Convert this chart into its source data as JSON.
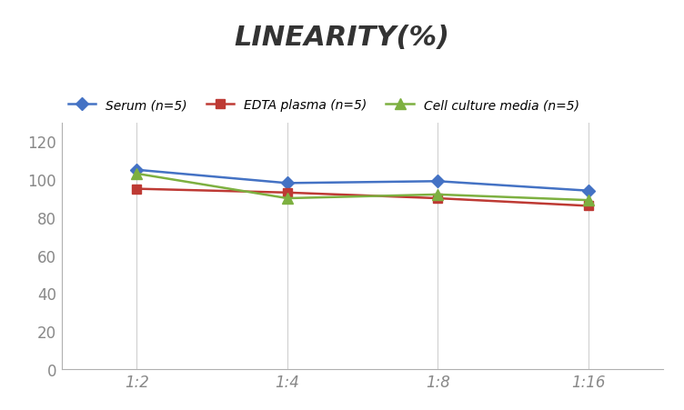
{
  "title": "LINEARITY(%)",
  "x_labels": [
    "1:2",
    "1:4",
    "1:8",
    "1:16"
  ],
  "x_positions": [
    0,
    1,
    2,
    3
  ],
  "series": [
    {
      "label": "Serum (n=5)",
      "values": [
        105,
        98,
        99,
        94
      ],
      "color": "#4472C4",
      "marker": "D",
      "markersize": 7,
      "linewidth": 1.8
    },
    {
      "label": "EDTA plasma (n=5)",
      "values": [
        95,
        93,
        90,
        86
      ],
      "color": "#BE3A34",
      "marker": "s",
      "markersize": 7,
      "linewidth": 1.8
    },
    {
      "label": "Cell culture media (n=5)",
      "values": [
        103,
        90,
        92,
        89
      ],
      "color": "#7DB040",
      "marker": "^",
      "markersize": 8,
      "linewidth": 1.8
    }
  ],
  "ylim": [
    0,
    130
  ],
  "yticks": [
    0,
    20,
    40,
    60,
    80,
    100,
    120
  ],
  "background_color": "#ffffff",
  "grid_color": "#d0d0d0",
  "title_fontsize": 22,
  "legend_fontsize": 10,
  "tick_fontsize": 12,
  "tick_color": "#888888"
}
